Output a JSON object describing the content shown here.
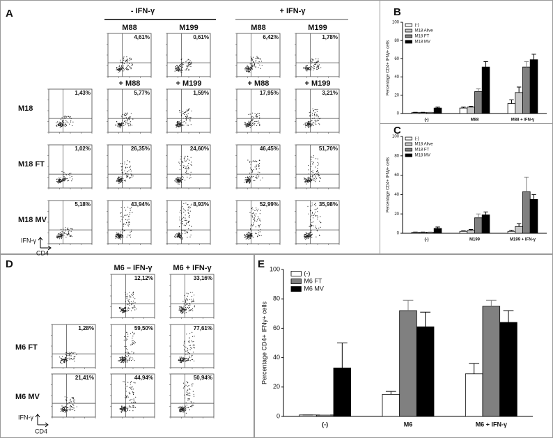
{
  "panel_labels": [
    "A",
    "B",
    "C",
    "D",
    "E"
  ],
  "flow_a": {
    "header_minus": "- IFN-γ",
    "header_plus": "+ IFN-γ",
    "columns": [
      "M88",
      "M199",
      "M88",
      "M199"
    ],
    "columns_2": [
      "+ M88",
      "+ M199",
      "+ M88",
      "+ M199"
    ],
    "rows": [
      "M18",
      "M18 FT",
      "M18 MV"
    ],
    "top_pcts": [
      "4,61%",
      "0,61%",
      "6,42%",
      "1,78%"
    ],
    "pcts": [
      [
        "1,43%",
        "5,77%",
        "1,59%",
        "17,95%",
        "3,21%"
      ],
      [
        "1,02%",
        "26,35%",
        "24,60%",
        "46,45%",
        "51,70%"
      ],
      [
        "5,18%",
        "43,94%",
        "8,93%",
        "52,99%",
        "35,98%"
      ]
    ],
    "y_axis": "IFN-γ",
    "x_axis": "CD4"
  },
  "flow_d": {
    "columns": [
      "M6 – IFN-γ",
      "M6 + IFN-γ"
    ],
    "rows": [
      "M6 FT",
      "M6 MV"
    ],
    "top_pcts": [
      "12,12%",
      "33,16%"
    ],
    "pcts": [
      [
        "1,28%",
        "59,50%",
        "77,61%"
      ],
      [
        "21,41%",
        "44,94%",
        "50,94%"
      ]
    ],
    "y_axis": "IFN-γ",
    "x_axis": "CD4"
  },
  "chart_data": [
    {
      "type": "bar",
      "y_label": "Percentage CD4+ IFNγ+ cells",
      "categories": [
        "(-)",
        "M88",
        "M88 + IFN-γ"
      ],
      "ylim": [
        0,
        100
      ],
      "yticks": [
        0,
        20,
        40,
        60,
        80,
        100
      ],
      "series": [
        {
          "name": "(-)",
          "color": "#ffffff",
          "values": [
            1,
            6,
            11
          ],
          "errors": [
            0.3,
            1,
            4
          ]
        },
        {
          "name": "M18 Alive",
          "color": "#c8c8c8",
          "values": [
            1,
            7,
            23
          ],
          "errors": [
            0.3,
            1,
            6
          ]
        },
        {
          "name": "M18 FT",
          "color": "#808080",
          "values": [
            1,
            24,
            51
          ],
          "errors": [
            0.3,
            3,
            6
          ]
        },
        {
          "name": "M18 MV",
          "color": "#000000",
          "values": [
            6,
            51,
            59
          ],
          "errors": [
            1,
            6,
            6
          ]
        }
      ]
    },
    {
      "type": "bar",
      "y_label": "Percentage CD4+ IFNγ+ cells",
      "categories": [
        "(-)",
        "M199",
        "M199 + IFN-γ"
      ],
      "ylim": [
        0,
        100
      ],
      "yticks": [
        0,
        20,
        40,
        60,
        80,
        100
      ],
      "series": [
        {
          "name": "(-)",
          "color": "#ffffff",
          "values": [
            1,
            2,
            2
          ],
          "errors": [
            0.3,
            0.5,
            1
          ]
        },
        {
          "name": "M18 Alive",
          "color": "#c8c8c8",
          "values": [
            1,
            3,
            7
          ],
          "errors": [
            0.3,
            1,
            3
          ]
        },
        {
          "name": "M18 FT",
          "color": "#808080",
          "values": [
            1,
            16,
            43
          ],
          "errors": [
            0.3,
            4,
            15
          ]
        },
        {
          "name": "M18 MV",
          "color": "#000000",
          "values": [
            5,
            19,
            35
          ],
          "errors": [
            1.5,
            3,
            5
          ]
        }
      ]
    },
    {
      "type": "bar",
      "y_label": "Percentage CD4+ IFNγ+ cells",
      "categories": [
        "(-)",
        "M6",
        "M6 + IFN-γ"
      ],
      "ylim": [
        0,
        100
      ],
      "yticks": [
        0,
        20,
        40,
        60,
        80,
        100
      ],
      "series": [
        {
          "name": "(-)",
          "color": "#ffffff",
          "values": [
            1,
            15,
            29
          ],
          "errors": [
            0,
            2,
            7
          ]
        },
        {
          "name": "M6 FT",
          "color": "#808080",
          "values": [
            1,
            72,
            75
          ],
          "errors": [
            0,
            7,
            4
          ]
        },
        {
          "name": "M6 MV",
          "color": "#000000",
          "values": [
            33,
            61,
            64
          ],
          "errors": [
            17,
            10,
            8
          ]
        }
      ]
    }
  ]
}
